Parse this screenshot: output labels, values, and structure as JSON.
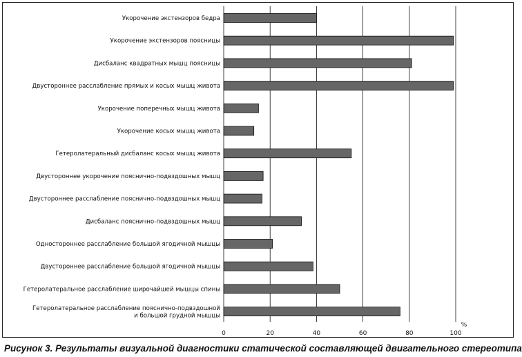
{
  "caption": "Рисунок 3. Результаты визуальной диагностики статической составляющей двигательного стереотипа",
  "chart_data": {
    "type": "bar",
    "orientation": "horizontal",
    "title": "",
    "xlabel": "%",
    "ylabel": "",
    "xlim": [
      0,
      100
    ],
    "xticks": [
      0,
      20,
      40,
      60,
      80,
      100
    ],
    "grid": true,
    "bar_color": "#666666",
    "categories": [
      [
        "Укорочение экстензоров бедра"
      ],
      [
        "Укорочение экстензоров поясницы"
      ],
      [
        "Дисбаланс квадратных мышц поясницы"
      ],
      [
        "Двустороннее расслабление прямых и косых мышц живота"
      ],
      [
        "Укорочение поперечных мышц живота"
      ],
      [
        "Укорочение косых мышц живота"
      ],
      [
        "Гетеролатеральный дисбаланс косых мышц живота"
      ],
      [
        "Двустороннее укорочение пояснично-подвздошных мышц"
      ],
      [
        "Двустороннее расслабление пояснично-подвздошных мышц"
      ],
      [
        "Дисбаланс пояснично-подвздошных мышц"
      ],
      [
        "Одностороннее расслабление большой ягодичной мышцы"
      ],
      [
        "Двустороннее расслабление большой ягодичной мышцы"
      ],
      [
        "Гетеролатеральное расслабление широчайшей мышцы спины"
      ],
      [
        "Гетеролатеральное расслабление пояснично-подвздошной",
        "и большой грудной мышцы"
      ]
    ],
    "values": [
      40,
      99,
      81,
      99,
      15,
      13,
      55,
      17,
      16.5,
      33.5,
      21,
      38.5,
      50,
      76
    ]
  }
}
